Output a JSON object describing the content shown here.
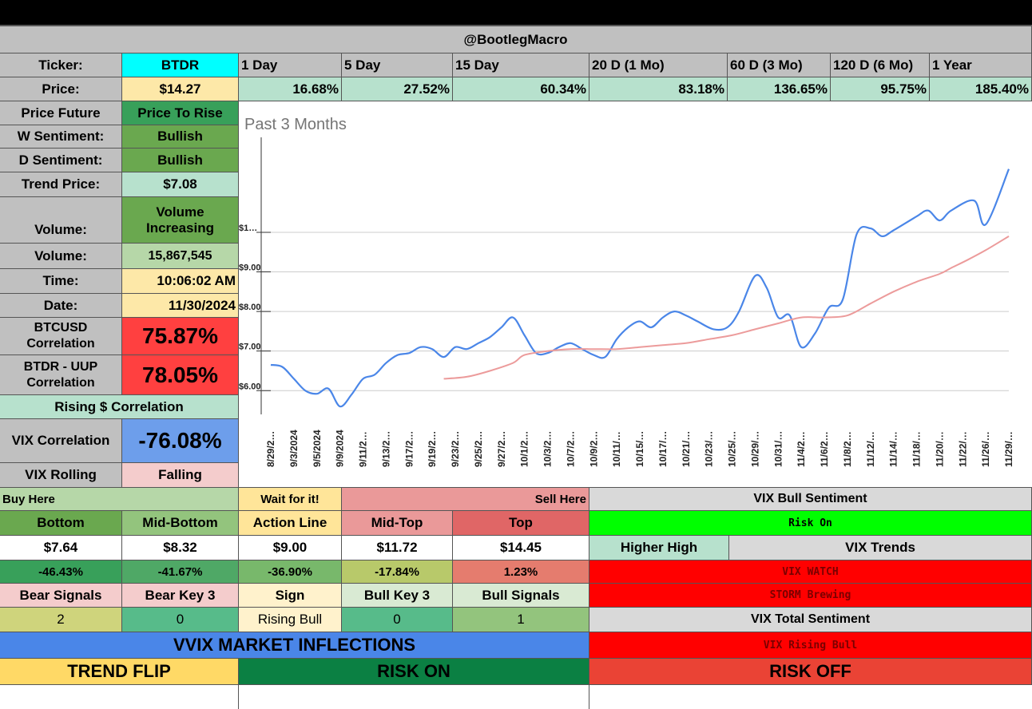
{
  "header": {
    "title": "@BootlegMacro"
  },
  "labels": {
    "ticker": "Ticker:",
    "price": "Price:",
    "price_future": "Price Future",
    "w_sentiment": "W Sentiment:",
    "d_sentiment": "D Sentiment:",
    "trend_price": "Trend Price:",
    "volume_trend": "Volume:",
    "volume": "Volume:",
    "time": "Time:",
    "date": "Date:",
    "btc_corr": "BTCUSD Correlation",
    "uup_corr": "BTDR - UUP Correlation",
    "vix_corr": "VIX Correlation",
    "vix_rolling": "VIX Rolling"
  },
  "values": {
    "ticker": "BTDR",
    "price": "$14.27",
    "price_future": "Price To Rise",
    "w_sentiment": "Bullish",
    "d_sentiment": "Bullish",
    "trend_price": "$7.08",
    "volume_trend": "Volume Increasing",
    "volume": "15,867,545",
    "time": "10:06:02 AM",
    "date": "11/30/2024",
    "btc_corr": "75.87%",
    "uup_corr": "78.05%",
    "rising_corr": "Rising $ Correlation",
    "vix_corr": "-76.08%",
    "vix_rolling": "Falling"
  },
  "periods": [
    {
      "label": "1 Day",
      "value": "16.68%"
    },
    {
      "label": "5 Day",
      "value": "27.52%"
    },
    {
      "label": "15 Day",
      "value": "60.34%"
    },
    {
      "label": "20 D (1 Mo)",
      "value": "83.18%"
    },
    {
      "label": "60 D (3 Mo)",
      "value": "136.65%"
    },
    {
      "label": "120 D (6 Mo)",
      "value": "95.75%"
    },
    {
      "label": "1 Year",
      "value": "185.40%"
    }
  ],
  "levels": {
    "buy_here": "Buy Here",
    "wait": "Wait for it!",
    "sell_here": "Sell Here",
    "items": [
      {
        "name": "Bottom",
        "price": "$7.64",
        "pct": "-46.43%"
      },
      {
        "name": "Mid-Bottom",
        "price": "$8.32",
        "pct": "-41.67%"
      },
      {
        "name": "Action Line",
        "price": "$9.00",
        "pct": "-36.90%"
      },
      {
        "name": "Mid-Top",
        "price": "$11.72",
        "pct": "-17.84%"
      },
      {
        "name": "Top",
        "price": "$14.45",
        "pct": "1.23%"
      }
    ]
  },
  "signals": {
    "headers": [
      "Bear Signals",
      "Bear Key 3",
      "Sign",
      "Bull Key 3",
      "Bull Signals"
    ],
    "values": [
      "2",
      "0",
      "Rising Bull",
      "0",
      "1"
    ]
  },
  "vix": {
    "bull_sentiment_label": "VIX Bull Sentiment",
    "risk_on": "Risk On",
    "higher_high": "Higher High",
    "trends_label": "VIX Trends",
    "watch": "VIX WATCH",
    "storm": "STORM Brewing",
    "total_label": "VIX Total Sentiment",
    "rising_bull": "VIX Rising Bull"
  },
  "vvix": {
    "title": "VVIX MARKET INFLECTIONS",
    "trend_flip": "TREND FLIP",
    "risk_on": "RISK ON",
    "risk_off": "RISK OFF"
  },
  "colors": {
    "black": "#000000",
    "header_grey": "#c0c0c0",
    "cyan": "#00ffff",
    "light_yellow": "#fde8a8",
    "light_green": "#b7e1cd",
    "mid_green": "#6aa84f",
    "red": "#ff4040",
    "blue": "#6d9eeb",
    "pink": "#f4cccc",
    "bright_green": "#00ff00",
    "vvix_blue": "#4a86e8",
    "trend_flip": "#ffd966",
    "dark_green": "#0b8043",
    "risk_off_red": "#ea4335"
  },
  "chart_data": {
    "type": "line",
    "title": "Past 3 Months",
    "ylabels": [
      "$1…",
      "$9.00",
      "$8.00",
      "$7.00",
      "$6.00"
    ],
    "y_ticks": [
      10,
      9,
      8,
      7,
      6
    ],
    "ylim": [
      5.4,
      12.4
    ],
    "x_labels": [
      "8/29/2…",
      "9/3/2024",
      "9/5/2024",
      "9/9/2024",
      "9/11/2…",
      "9/13/2…",
      "9/17/2…",
      "9/19/2…",
      "9/23/2…",
      "9/25/2…",
      "9/27/2…",
      "10/1/2…",
      "10/3/2…",
      "10/7/2…",
      "10/9/2…",
      "10/11/…",
      "10/15/…",
      "10/17/…",
      "10/21/…",
      "10/23/…",
      "10/25/…",
      "10/29/…",
      "10/31/…",
      "11/4/2…",
      "11/6/2…",
      "11/8/2…",
      "11/12/…",
      "11/14/…",
      "11/18/…",
      "11/20/…",
      "11/22/…",
      "11/26/…",
      "11/29/…"
    ],
    "series": [
      {
        "color": "#4a86e8",
        "values": [
          6.65,
          6.6,
          6.3,
          6.0,
          5.92,
          6.05,
          5.6,
          5.9,
          6.3,
          6.4,
          6.7,
          6.9,
          6.95,
          7.1,
          7.05,
          6.85,
          7.1,
          7.05,
          7.2,
          7.35,
          7.6,
          7.85,
          7.4,
          6.95,
          6.95,
          7.1,
          7.2,
          7.05,
          6.9,
          6.85,
          7.3,
          7.6,
          7.75,
          7.6,
          7.85,
          8.0,
          7.9,
          7.75,
          7.55,
          7.6,
          8.0,
          8.9,
          8.6,
          7.85,
          7.9,
          7.1,
          7.45,
          8.1,
          8.3,
          9.95,
          10.1,
          9.9,
          10.05,
          10.4,
          10.55,
          10.3,
          10.55,
          10.8,
          10.2,
          11.6
        ],
        "x_index": [
          0,
          0.5,
          1,
          1.5,
          2,
          2.5,
          3,
          3.5,
          4,
          4.5,
          5,
          5.5,
          6,
          6.5,
          7,
          7.5,
          8,
          8.5,
          9,
          9.5,
          10,
          10.5,
          11,
          11.5,
          12,
          12.5,
          13,
          13.5,
          14,
          14.5,
          15,
          15.5,
          16,
          16.5,
          17,
          17.5,
          18,
          18.5,
          19.2,
          19.8,
          20.3,
          21,
          21.5,
          22,
          22.5,
          23,
          23.6,
          24.2,
          24.8,
          25.4,
          26,
          26.5,
          27,
          28,
          28.5,
          29,
          29.5,
          30.5,
          31,
          32
        ]
      },
      {
        "color": "#ec9b9b",
        "values": [
          6.3,
          6.35,
          6.5,
          6.7,
          6.9,
          7.0,
          7.05,
          7.05,
          7.05,
          7.1,
          7.15,
          7.2,
          7.3,
          7.4,
          7.55,
          7.7,
          7.85,
          7.85,
          7.9,
          8.2,
          8.5,
          8.75,
          8.95,
          9.1,
          9.3,
          9.55,
          9.9
        ],
        "x_index": [
          7.5,
          8.5,
          9.5,
          10.5,
          11,
          12,
          13,
          14,
          15,
          16,
          17,
          18,
          19,
          20,
          21,
          22,
          23,
          24,
          25,
          26,
          27,
          28,
          29,
          29.5,
          30.2,
          31,
          32
        ]
      }
    ]
  }
}
